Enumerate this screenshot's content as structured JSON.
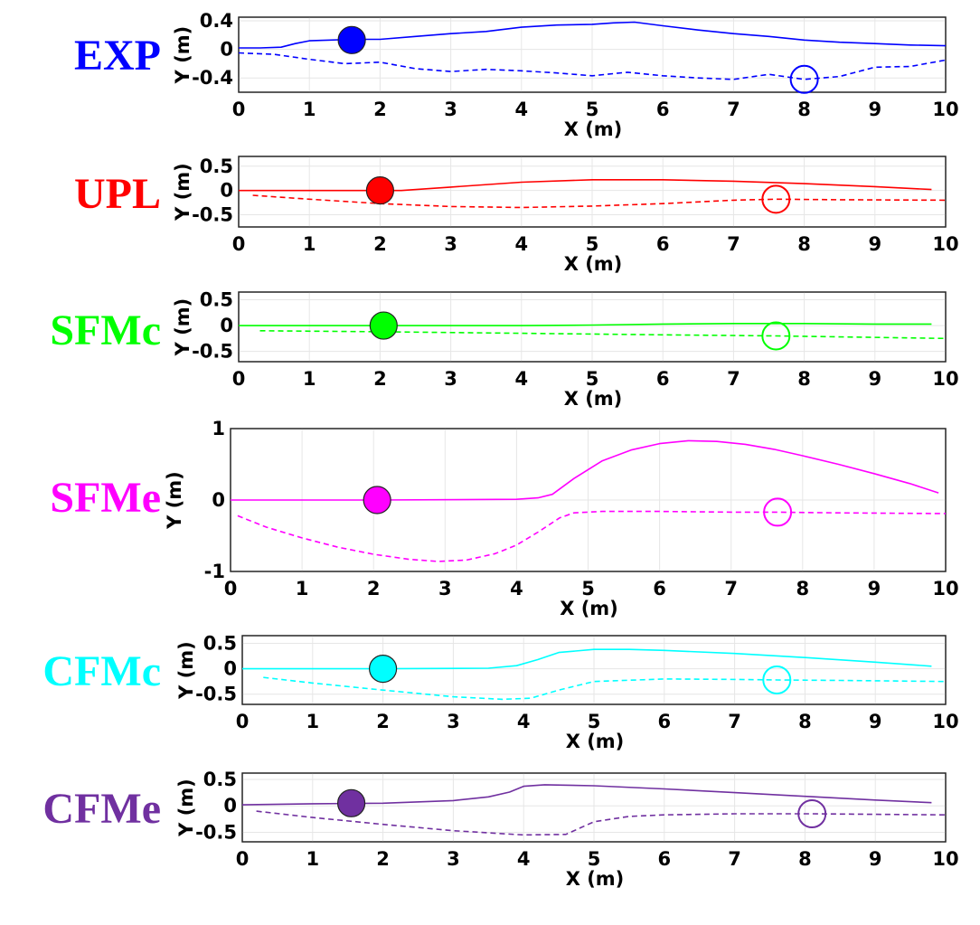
{
  "chart_data": [
    {
      "type": "line",
      "label": "EXP",
      "color": "#0000ff",
      "xlabel": "X (m)",
      "ylabel": "Y (m)",
      "xlim": [
        0,
        10
      ],
      "ylim": [
        -0.6,
        0.45
      ],
      "yticks": [
        0.4,
        0,
        -0.4
      ],
      "ytick_labels": [
        "0.4",
        "0",
        "-0.4"
      ],
      "xticks": [
        0,
        1,
        2,
        3,
        4,
        5,
        6,
        7,
        8,
        9,
        10
      ],
      "xtick_labels": [
        "0",
        "1",
        "2",
        "3",
        "4",
        "5",
        "6",
        "7",
        "8",
        "9",
        "10"
      ],
      "grid": true,
      "series": [
        {
          "style": "solid",
          "x": [
            0,
            0.3,
            0.6,
            0.8,
            1.0,
            1.3,
            1.6,
            2.0,
            2.5,
            3.0,
            3.5,
            4.0,
            4.5,
            5.0,
            5.3,
            5.6,
            6.0,
            6.5,
            7.0,
            7.5,
            8.0,
            8.5,
            9.0,
            9.5,
            10.0
          ],
          "y": [
            0.02,
            0.02,
            0.03,
            0.08,
            0.12,
            0.13,
            0.14,
            0.14,
            0.18,
            0.22,
            0.25,
            0.31,
            0.34,
            0.35,
            0.37,
            0.38,
            0.33,
            0.27,
            0.22,
            0.18,
            0.13,
            0.1,
            0.08,
            0.06,
            0.05
          ]
        },
        {
          "style": "dashed",
          "x": [
            0,
            0.5,
            1.0,
            1.5,
            2.0,
            2.5,
            3.0,
            3.5,
            4.0,
            4.5,
            5.0,
            5.5,
            6.0,
            6.5,
            7.0,
            7.5,
            8.0,
            8.5,
            9.0,
            9.5,
            10.0
          ],
          "y": [
            -0.05,
            -0.07,
            -0.14,
            -0.2,
            -0.18,
            -0.27,
            -0.31,
            -0.28,
            -0.3,
            -0.33,
            -0.37,
            -0.32,
            -0.37,
            -0.4,
            -0.42,
            -0.35,
            -0.42,
            -0.38,
            -0.25,
            -0.24,
            -0.15
          ]
        }
      ],
      "markers": [
        {
          "type": "filled",
          "x": 1.6,
          "y": 0.13
        },
        {
          "type": "open",
          "x": 8.0,
          "y": -0.42
        }
      ]
    },
    {
      "type": "line",
      "label": "UPL",
      "color": "#ff0000",
      "xlabel": "X (m)",
      "ylabel": "Y (m)",
      "xlim": [
        0,
        10
      ],
      "ylim": [
        -0.75,
        0.7
      ],
      "yticks": [
        0.5,
        0,
        -0.5
      ],
      "ytick_labels": [
        "0.5",
        "0",
        "-0.5"
      ],
      "xticks": [
        0,
        1,
        2,
        3,
        4,
        5,
        6,
        7,
        8,
        9,
        10
      ],
      "xtick_labels": [
        "0",
        "1",
        "2",
        "3",
        "4",
        "5",
        "6",
        "7",
        "8",
        "9",
        "10"
      ],
      "grid": true,
      "series": [
        {
          "style": "solid",
          "x": [
            0,
            1.0,
            2.0,
            2.3,
            3.0,
            4.0,
            5.0,
            5.5,
            6.0,
            7.0,
            8.0,
            9.0,
            9.8
          ],
          "y": [
            0,
            0,
            0,
            0.0,
            0.07,
            0.17,
            0.22,
            0.22,
            0.22,
            0.19,
            0.14,
            0.08,
            0.02
          ]
        },
        {
          "style": "dashed",
          "x": [
            0.2,
            1.0,
            2.0,
            3.0,
            4.0,
            5.0,
            6.0,
            7.0,
            7.6,
            8.5,
            10.0
          ],
          "y": [
            -0.1,
            -0.18,
            -0.27,
            -0.33,
            -0.35,
            -0.32,
            -0.27,
            -0.2,
            -0.18,
            -0.19,
            -0.2
          ]
        }
      ],
      "markers": [
        {
          "type": "filled",
          "x": 2.0,
          "y": 0.0
        },
        {
          "type": "open",
          "x": 7.6,
          "y": -0.18
        }
      ]
    },
    {
      "type": "line",
      "label": "SFMc",
      "color": "#00ff00",
      "xlabel": "X (m)",
      "ylabel": "Y (m)",
      "xlim": [
        0,
        10
      ],
      "ylim": [
        -0.7,
        0.65
      ],
      "yticks": [
        0.5,
        0,
        -0.5
      ],
      "ytick_labels": [
        "0.5",
        "0",
        "-0.5"
      ],
      "xticks": [
        0,
        1,
        2,
        3,
        4,
        5,
        6,
        7,
        8,
        9,
        10
      ],
      "xtick_labels": [
        "0",
        "1",
        "2",
        "3",
        "4",
        "5",
        "6",
        "7",
        "8",
        "9",
        "10"
      ],
      "grid": true,
      "series": [
        {
          "style": "solid",
          "x": [
            0,
            2.0,
            4.0,
            5.0,
            6.0,
            7.0,
            8.0,
            9.0,
            9.8
          ],
          "y": [
            0,
            0,
            0.0,
            0.01,
            0.03,
            0.04,
            0.04,
            0.03,
            0.03
          ]
        },
        {
          "style": "dashed",
          "x": [
            0.3,
            2.0,
            4.0,
            6.0,
            7.6,
            10.0
          ],
          "y": [
            -0.1,
            -0.12,
            -0.15,
            -0.18,
            -0.2,
            -0.25
          ]
        }
      ],
      "markers": [
        {
          "type": "filled",
          "x": 2.05,
          "y": 0.0
        },
        {
          "type": "open",
          "x": 7.6,
          "y": -0.2
        }
      ]
    },
    {
      "type": "line",
      "label": "SFMe",
      "color": "#ff00ff",
      "xlabel": "X (m)",
      "ylabel": "Y (m)",
      "xlim": [
        0,
        10
      ],
      "ylim": [
        -1,
        1
      ],
      "yticks": [
        1,
        0,
        -1
      ],
      "ytick_labels": [
        "1",
        "0",
        "-1"
      ],
      "xticks": [
        0,
        1,
        2,
        3,
        4,
        5,
        6,
        7,
        8,
        9,
        10
      ],
      "xtick_labels": [
        "0",
        "1",
        "2",
        "3",
        "4",
        "5",
        "6",
        "7",
        "8",
        "9",
        "10"
      ],
      "grid": true,
      "series": [
        {
          "style": "solid",
          "x": [
            0,
            2.0,
            4.0,
            4.3,
            4.5,
            4.8,
            5.2,
            5.6,
            6.0,
            6.4,
            6.8,
            7.2,
            7.6,
            8.0,
            8.5,
            9.0,
            9.5,
            9.9
          ],
          "y": [
            0,
            0,
            0.01,
            0.03,
            0.08,
            0.3,
            0.55,
            0.7,
            0.79,
            0.83,
            0.82,
            0.78,
            0.71,
            0.62,
            0.5,
            0.37,
            0.23,
            0.1
          ]
        },
        {
          "style": "dashed",
          "x": [
            0.1,
            0.5,
            1.0,
            1.5,
            2.0,
            2.5,
            2.9,
            3.3,
            3.7,
            4.0,
            4.3,
            4.6,
            4.8,
            5.2,
            6.0,
            7.0,
            7.6,
            8.5,
            10.0
          ],
          "y": [
            -0.22,
            -0.38,
            -0.53,
            -0.66,
            -0.76,
            -0.83,
            -0.86,
            -0.84,
            -0.75,
            -0.63,
            -0.45,
            -0.25,
            -0.18,
            -0.16,
            -0.16,
            -0.17,
            -0.17,
            -0.18,
            -0.19
          ]
        }
      ],
      "markers": [
        {
          "type": "filled",
          "x": 2.05,
          "y": 0.0
        },
        {
          "type": "open",
          "x": 7.65,
          "y": -0.17
        }
      ]
    },
    {
      "type": "line",
      "label": "CFMc",
      "color": "#00ffff",
      "xlabel": "X (m)",
      "ylabel": "Y (m)",
      "xlim": [
        0,
        10
      ],
      "ylim": [
        -0.7,
        0.65
      ],
      "yticks": [
        0.5,
        0,
        -0.5
      ],
      "ytick_labels": [
        "0.5",
        "0",
        "-0.5"
      ],
      "xticks": [
        0,
        1,
        2,
        3,
        4,
        5,
        6,
        7,
        8,
        9,
        10
      ],
      "xtick_labels": [
        "0",
        "1",
        "2",
        "3",
        "4",
        "5",
        "6",
        "7",
        "8",
        "9",
        "10"
      ],
      "grid": true,
      "series": [
        {
          "style": "solid",
          "x": [
            0,
            2.0,
            3.5,
            3.9,
            4.2,
            4.5,
            5.0,
            5.5,
            6.0,
            7.0,
            8.0,
            9.0,
            9.8
          ],
          "y": [
            0,
            0,
            0.01,
            0.06,
            0.18,
            0.32,
            0.38,
            0.38,
            0.36,
            0.3,
            0.22,
            0.13,
            0.05
          ]
        },
        {
          "style": "dashed",
          "x": [
            0.3,
            1.0,
            2.0,
            3.0,
            3.7,
            4.1,
            4.5,
            5.0,
            6.0,
            7.0,
            7.6,
            8.5,
            10.0
          ],
          "y": [
            -0.17,
            -0.28,
            -0.42,
            -0.55,
            -0.6,
            -0.58,
            -0.42,
            -0.25,
            -0.2,
            -0.21,
            -0.22,
            -0.23,
            -0.25
          ]
        }
      ],
      "markers": [
        {
          "type": "filled",
          "x": 2.0,
          "y": 0.0
        },
        {
          "type": "open",
          "x": 7.6,
          "y": -0.22
        }
      ]
    },
    {
      "type": "line",
      "label": "CFMe",
      "color": "#7030a0",
      "xlabel": "X (m)",
      "ylabel": "Y (m)",
      "xlim": [
        0,
        10
      ],
      "ylim": [
        -0.68,
        0.62
      ],
      "yticks": [
        0.5,
        0,
        -0.5
      ],
      "ytick_labels": [
        "0.5",
        "0",
        "-0.5"
      ],
      "xticks": [
        0,
        1,
        2,
        3,
        4,
        5,
        6,
        7,
        8,
        9,
        10
      ],
      "xtick_labels": [
        "0",
        "1",
        "2",
        "3",
        "4",
        "5",
        "6",
        "7",
        "8",
        "9",
        "10"
      ],
      "grid": true,
      "series": [
        {
          "style": "solid",
          "x": [
            0,
            1.0,
            2.0,
            3.0,
            3.5,
            3.8,
            4.0,
            4.3,
            5.0,
            6.0,
            7.0,
            8.0,
            9.0,
            9.8
          ],
          "y": [
            0.02,
            0.04,
            0.05,
            0.1,
            0.17,
            0.26,
            0.37,
            0.4,
            0.38,
            0.32,
            0.25,
            0.18,
            0.11,
            0.06
          ]
        },
        {
          "style": "dashed",
          "x": [
            0.2,
            1.0,
            2.0,
            3.0,
            4.0,
            4.6,
            5.0,
            5.5,
            6.0,
            7.0,
            8.1,
            9.0,
            10.0
          ],
          "y": [
            -0.1,
            -0.22,
            -0.35,
            -0.47,
            -0.55,
            -0.54,
            -0.3,
            -0.2,
            -0.17,
            -0.15,
            -0.15,
            -0.16,
            -0.17
          ]
        }
      ],
      "markers": [
        {
          "type": "filled",
          "x": 1.55,
          "y": 0.05
        },
        {
          "type": "open",
          "x": 8.1,
          "y": -0.15
        }
      ]
    }
  ]
}
